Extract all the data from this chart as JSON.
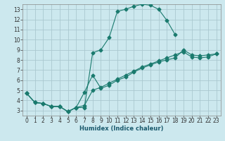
{
  "title": "",
  "xlabel": "Humidex (Indice chaleur)",
  "ylabel": "",
  "bg_color": "#cce8ee",
  "grid_color": "#aac8d0",
  "line_color": "#1a7a6e",
  "xlim": [
    -0.5,
    23.5
  ],
  "ylim": [
    2.5,
    13.5
  ],
  "xticks": [
    0,
    1,
    2,
    3,
    4,
    5,
    6,
    7,
    8,
    9,
    10,
    11,
    12,
    13,
    14,
    15,
    16,
    17,
    18,
    19,
    20,
    21,
    22,
    23
  ],
  "yticks": [
    3,
    4,
    5,
    6,
    7,
    8,
    9,
    10,
    11,
    12,
    13
  ],
  "line1_x": [
    0,
    1,
    2,
    3,
    4,
    5,
    6,
    7,
    8,
    9,
    10,
    11,
    12,
    13,
    14,
    15,
    16,
    17,
    18
  ],
  "line1_y": [
    4.7,
    3.8,
    3.7,
    3.4,
    3.4,
    2.9,
    3.3,
    3.3,
    8.7,
    9.0,
    10.2,
    12.8,
    13.0,
    13.3,
    13.5,
    13.4,
    13.0,
    11.9,
    10.5
  ],
  "line2_x": [
    0,
    1,
    2,
    3,
    4,
    5,
    6,
    7,
    8,
    9,
    10,
    11,
    12,
    13,
    14,
    15,
    16,
    17,
    18,
    19,
    20,
    21,
    22,
    23
  ],
  "line2_y": [
    4.7,
    3.8,
    3.7,
    3.4,
    3.4,
    2.9,
    3.3,
    4.8,
    6.5,
    5.2,
    5.5,
    6.0,
    6.3,
    6.8,
    7.2,
    7.5,
    7.8,
    8.0,
    8.2,
    9.0,
    8.5,
    8.4,
    8.5,
    8.6
  ],
  "line3_x": [
    0,
    1,
    2,
    3,
    4,
    5,
    6,
    7,
    8,
    9,
    10,
    11,
    12,
    13,
    14,
    15,
    16,
    17,
    18,
    19,
    20,
    21,
    22,
    23
  ],
  "line3_y": [
    4.7,
    3.8,
    3.7,
    3.4,
    3.4,
    2.9,
    3.3,
    3.5,
    5.0,
    5.3,
    5.7,
    6.1,
    6.5,
    6.9,
    7.3,
    7.6,
    7.9,
    8.2,
    8.5,
    8.8,
    8.3,
    8.2,
    8.3,
    8.6
  ],
  "xlabel_color": "#1a5a6e",
  "xlabel_fontsize": 6,
  "tick_fontsize": 5.5,
  "spine_color": "#888888"
}
